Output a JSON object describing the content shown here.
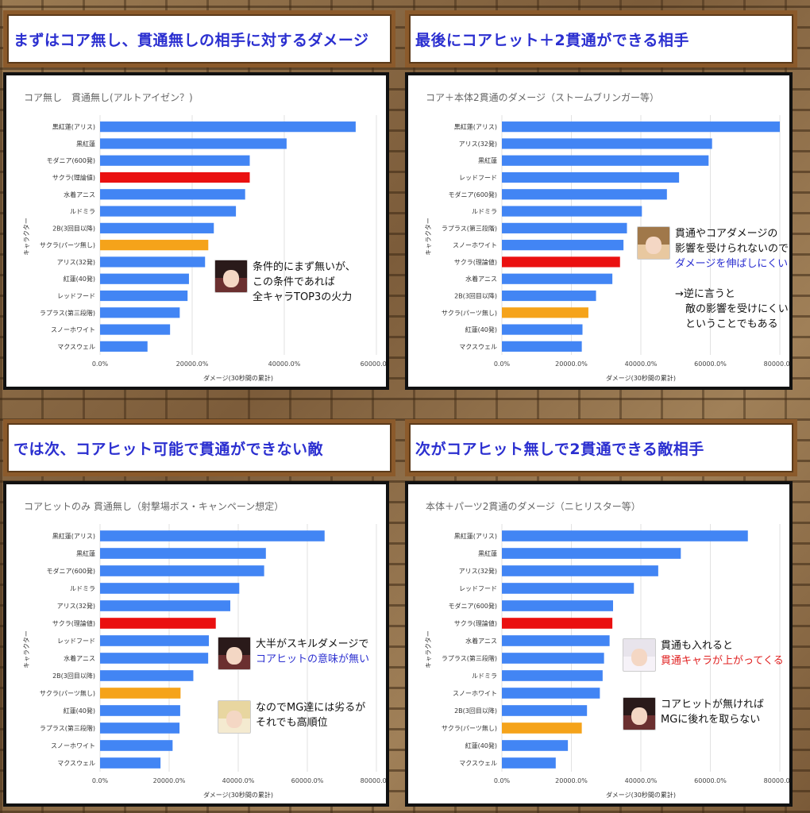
{
  "colors": {
    "default": "#4285f4",
    "highlight": "#ea1010",
    "secondary": "#f5a31a"
  },
  "quadrants": [
    {
      "banner": "まずはコア無し、貫通無しの相手に対するダメージ",
      "chart_data": {
        "type": "bar",
        "orientation": "horizontal",
        "title": "コア無し　貫通無し(アルトアイゼン？)",
        "xlabel": "ダメージ(30秒間の累計)",
        "ylabel": "キャラクター",
        "xlim": [
          0,
          60000
        ],
        "ticks": [
          0,
          20000,
          40000,
          60000
        ],
        "tick_labels": [
          "0.0%",
          "20000.0%",
          "40000.0%",
          "60000.0%"
        ],
        "categories": [
          "黒紅蓮(アリス)",
          "黒紅蓮",
          "モダニア(600発)",
          "サクラ(理論値)",
          "水着アニス",
          "ルドミラ",
          "2B(3回目以降)",
          "サクラ(パーツ無し)",
          "アリス(32発)",
          "紅蓮(40発)",
          "レッドフード",
          "ラプラス(第三段階)",
          "スノーホワイト",
          "マクスウェル"
        ],
        "values": [
          55500,
          40500,
          32500,
          32500,
          31500,
          29500,
          24700,
          23500,
          22800,
          19300,
          19000,
          17300,
          15200,
          10300
        ],
        "highlight": {
          "サクラ(理論値)": "highlight",
          "サクラ(パーツ無し)": "secondary"
        }
      },
      "callouts": [
        {
          "avatar": "dark-hair-character-icon",
          "lines": [
            {
              "text": "条件的にまず無いが、",
              "style": ""
            },
            {
              "text": "この条件であれば",
              "style": ""
            },
            {
              "text": "全キャラTOP3の火力",
              "style": ""
            }
          ]
        }
      ]
    },
    {
      "banner": "最後にコアヒット＋2貫通ができる相手",
      "chart_data": {
        "type": "bar",
        "orientation": "horizontal",
        "title": "コア＋本体2貫通のダメージ（ストームブリンガー等）",
        "xlabel": "ダメージ(30秒間の累計)",
        "ylabel": "キャラクター",
        "xlim": [
          0,
          80000
        ],
        "ticks": [
          0,
          20000,
          40000,
          60000,
          80000
        ],
        "tick_labels": [
          "0.0%",
          "20000.0%",
          "40000.0%",
          "60000.0%",
          "80000.0%"
        ],
        "categories": [
          "黒紅蓮(アリス)",
          "アリス(32発)",
          "黒紅蓮",
          "レッドフード",
          "モダニア(600発)",
          "ルドミラ",
          "ラプラス(第三段階)",
          "スノーホワイト",
          "サクラ(理論値)",
          "水着アニス",
          "2B(3回目以降)",
          "サクラ(パーツ無し)",
          "紅蓮(40発)",
          "マクスウェル"
        ],
        "values": [
          80000,
          60500,
          59500,
          51000,
          47500,
          40300,
          36000,
          35000,
          34000,
          31800,
          27100,
          24900,
          23200,
          23000
        ],
        "highlight": {
          "サクラ(理論値)": "highlight",
          "サクラ(パーツ無し)": "secondary"
        }
      },
      "callouts": [
        {
          "avatar": "brown-hair-character-icon",
          "lines": [
            {
              "text": "貫通やコアダメージの",
              "style": ""
            },
            {
              "text": "影響を受けられないので",
              "style": ""
            },
            {
              "text": "ダメージを伸ばしにくい",
              "style": "blue"
            },
            {
              "text": "",
              "style": ""
            },
            {
              "text": "→逆に言うと",
              "style": ""
            },
            {
              "text": "　敵の影響を受けにくい",
              "style": ""
            },
            {
              "text": "　ということでもある",
              "style": ""
            }
          ]
        }
      ]
    },
    {
      "banner": "では次、コアヒット可能で貫通ができない敵",
      "chart_data": {
        "type": "bar",
        "orientation": "horizontal",
        "title": "コアヒットのみ 貫通無し（射撃場ボス・キャンペーン想定）",
        "xlabel": "ダメージ(30秒間の累計)",
        "ylabel": "キャラクター",
        "xlim": [
          0,
          80000
        ],
        "ticks": [
          0,
          20000,
          40000,
          60000,
          80000
        ],
        "tick_labels": [
          "0.0%",
          "20000.0%",
          "40000.0%",
          "60000.0%",
          "80000.0%"
        ],
        "categories": [
          "黒紅蓮(アリス)",
          "黒紅蓮",
          "モダニア(600発)",
          "ルドミラ",
          "アリス(32発)",
          "サクラ(理論値)",
          "レッドフード",
          "水着アニス",
          "2B(3回目以降)",
          "サクラ(パーツ無し)",
          "紅蓮(40発)",
          "ラプラス(第三段階)",
          "スノーホワイト",
          "マクスウェル"
        ],
        "values": [
          65000,
          48000,
          47500,
          40300,
          37700,
          33500,
          31500,
          31300,
          27000,
          23300,
          23200,
          23000,
          21000,
          17500
        ],
        "highlight": {
          "サクラ(理論値)": "highlight",
          "サクラ(パーツ無し)": "secondary"
        }
      },
      "callouts": [
        {
          "avatar": "dark-hair-character-icon",
          "lines": [
            {
              "text": "大半がスキルダメージで",
              "style": ""
            },
            {
              "text": "コアヒットの意味が無い",
              "style": "blue"
            }
          ]
        },
        {
          "avatar": "blonde-character-icon",
          "lines": [
            {
              "text": "なのでMG達には劣るが",
              "style": ""
            },
            {
              "text": "それでも高順位",
              "style": ""
            }
          ]
        }
      ]
    },
    {
      "banner": "次がコアヒット無しで2貫通できる敵相手",
      "chart_data": {
        "type": "bar",
        "orientation": "horizontal",
        "title": "本体＋パーツ2貫通のダメージ（ニヒリスター等）",
        "xlabel": "ダメージ(30秒間の累計)",
        "ylabel": "キャラクター",
        "xlim": [
          0,
          80000
        ],
        "ticks": [
          0,
          20000,
          40000,
          60000,
          80000
        ],
        "tick_labels": [
          "0.0%",
          "20000.0%",
          "40000.0%",
          "60000.0%",
          "80000.0%"
        ],
        "categories": [
          "黒紅蓮(アリス)",
          "黒紅蓮",
          "アリス(32発)",
          "レッドフード",
          "モダニア(600発)",
          "サクラ(理論値)",
          "水着アニス",
          "ラプラス(第三段階)",
          "ルドミラ",
          "スノーホワイト",
          "2B(3回目以降)",
          "サクラ(パーツ無し)",
          "紅蓮(40発)",
          "マクスウェル"
        ],
        "values": [
          70800,
          51500,
          45000,
          38000,
          32000,
          31800,
          31000,
          29400,
          29000,
          28200,
          24500,
          23000,
          19000,
          15500
        ],
        "highlight": {
          "サクラ(理論値)": "highlight",
          "サクラ(パーツ無し)": "secondary"
        }
      },
      "callouts": [
        {
          "avatar": "white-hair-character-icon",
          "lines": [
            {
              "text": "貫通も入れると",
              "style": ""
            },
            {
              "text": "貫通キャラが上がってくる",
              "style": "red"
            }
          ]
        },
        {
          "avatar": "dark-hair-character-icon",
          "lines": [
            {
              "text": "コアヒットが無ければ",
              "style": ""
            },
            {
              "text": "MGに後れを取らない",
              "style": ""
            }
          ]
        }
      ]
    }
  ]
}
